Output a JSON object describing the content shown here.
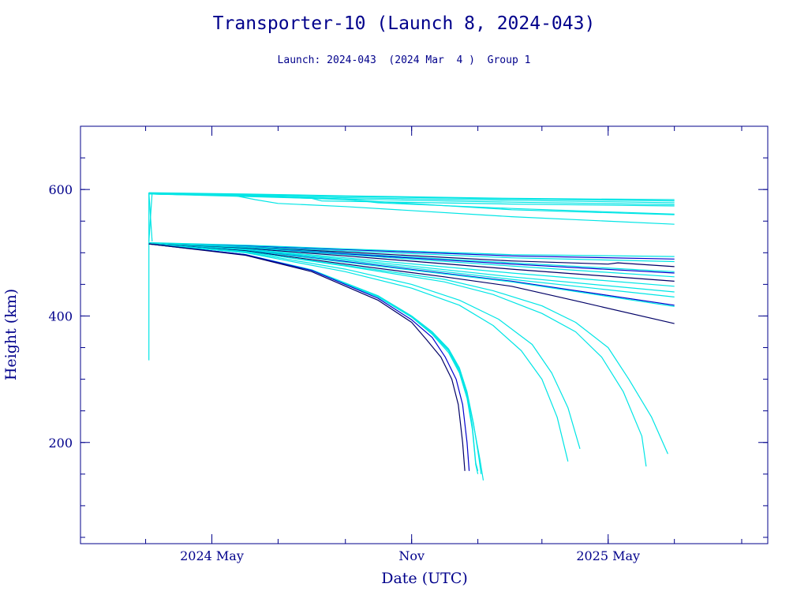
{
  "chart_data": {
    "type": "line",
    "title": "Transporter-10 (Launch 8, 2024-043)",
    "subtitle": "Launch: 2024-043  (2024 Mar  4 )  Group 1",
    "xlabel": "Date (UTC)",
    "ylabel": "Height (km)",
    "xlim": [
      "2024-01-01",
      "2025-09-25"
    ],
    "ylim": [
      40,
      700
    ],
    "x_ticks": [
      {
        "date": "2024-05-01",
        "label": "2024 May"
      },
      {
        "date": "2024-11-01",
        "label": "Nov"
      },
      {
        "date": "2025-05-01",
        "label": "2025 May"
      }
    ],
    "y_ticks": [
      {
        "value": 200,
        "label": "200"
      },
      {
        "value": 400,
        "label": "400"
      },
      {
        "value": 600,
        "label": "600"
      }
    ],
    "colors": {
      "frame": "#00008b",
      "cyan": "#00e5e5",
      "blue": "#0000cd",
      "navy": "#000066"
    },
    "series": [
      {
        "color": "#00e5e5",
        "points": [
          [
            "2024-03-04",
            330
          ],
          [
            "2024-03-04",
            595
          ]
        ]
      },
      {
        "color": "#00e5e5",
        "points": [
          [
            "2024-03-04",
            595
          ],
          [
            "2024-03-07",
            518
          ]
        ]
      },
      {
        "color": "#00e5e5",
        "points": [
          [
            "2024-03-04",
            518
          ],
          [
            "2024-03-07",
            595
          ]
        ]
      },
      {
        "color": "#00e5e5",
        "points": [
          [
            "2024-03-04",
            595
          ],
          [
            "2024-06-01",
            593
          ],
          [
            "2024-09-01",
            590
          ],
          [
            "2025-02-01",
            586
          ],
          [
            "2025-07-01",
            584
          ]
        ]
      },
      {
        "color": "#00e5e5",
        "points": [
          [
            "2024-03-04",
            594
          ],
          [
            "2024-06-01",
            592
          ],
          [
            "2024-09-01",
            589
          ],
          [
            "2025-02-01",
            585
          ],
          [
            "2025-07-01",
            582
          ]
        ]
      },
      {
        "color": "#00e5e5",
        "points": [
          [
            "2024-03-04",
            594
          ],
          [
            "2024-06-01",
            591
          ],
          [
            "2024-09-01",
            587
          ],
          [
            "2025-02-01",
            583
          ],
          [
            "2025-07-01",
            579
          ]
        ]
      },
      {
        "color": "#00e5e5",
        "points": [
          [
            "2024-03-04",
            593
          ],
          [
            "2024-06-01",
            590
          ],
          [
            "2024-09-01",
            585
          ],
          [
            "2025-02-01",
            580
          ],
          [
            "2025-07-01",
            576
          ]
        ]
      },
      {
        "color": "#00e5e5",
        "points": [
          [
            "2024-03-04",
            593
          ],
          [
            "2024-06-01",
            589
          ],
          [
            "2024-08-01",
            586
          ],
          [
            "2024-08-10",
            582
          ],
          [
            "2025-02-01",
            577
          ],
          [
            "2025-07-01",
            574
          ]
        ]
      },
      {
        "color": "#00e5e5",
        "points": [
          [
            "2024-03-04",
            593
          ],
          [
            "2024-06-01",
            590
          ],
          [
            "2024-09-01",
            585
          ],
          [
            "2024-10-01",
            579
          ],
          [
            "2025-02-01",
            570
          ],
          [
            "2025-07-01",
            561
          ]
        ]
      },
      {
        "color": "#00e5e5",
        "points": [
          [
            "2024-03-04",
            593
          ],
          [
            "2024-06-01",
            590
          ],
          [
            "2024-09-01",
            584
          ],
          [
            "2025-02-01",
            568
          ],
          [
            "2025-07-01",
            560
          ]
        ]
      },
      {
        "color": "#00e5e5",
        "points": [
          [
            "2024-03-04",
            593
          ],
          [
            "2024-05-20",
            591
          ],
          [
            "2024-06-10",
            584
          ],
          [
            "2024-07-01",
            578
          ],
          [
            "2024-09-01",
            573
          ],
          [
            "2025-02-01",
            557
          ],
          [
            "2025-07-01",
            545
          ]
        ]
      },
      {
        "color": "#0000cd",
        "points": [
          [
            "2024-03-04",
            515
          ],
          [
            "2024-06-01",
            511
          ],
          [
            "2024-09-01",
            505
          ],
          [
            "2025-02-01",
            495
          ],
          [
            "2025-07-01",
            490
          ]
        ]
      },
      {
        "color": "#00e5e5",
        "points": [
          [
            "2024-03-04",
            516
          ],
          [
            "2024-06-01",
            512
          ],
          [
            "2024-09-01",
            506
          ],
          [
            "2025-02-01",
            497
          ],
          [
            "2025-07-01",
            494
          ]
        ]
      },
      {
        "color": "#00e5e5",
        "points": [
          [
            "2024-03-04",
            515
          ],
          [
            "2024-06-01",
            510
          ],
          [
            "2024-09-01",
            503
          ],
          [
            "2025-02-01",
            492
          ],
          [
            "2025-07-01",
            486
          ]
        ]
      },
      {
        "color": "#000066",
        "points": [
          [
            "2024-03-04",
            514
          ],
          [
            "2024-06-01",
            509
          ],
          [
            "2024-09-01",
            501
          ],
          [
            "2025-02-01",
            487
          ],
          [
            "2025-05-01",
            482
          ],
          [
            "2025-05-10",
            484
          ],
          [
            "2025-07-01",
            478
          ]
        ]
      },
      {
        "color": "#00e5e5",
        "points": [
          [
            "2024-03-04",
            515
          ],
          [
            "2024-06-01",
            509
          ],
          [
            "2024-09-01",
            499
          ],
          [
            "2025-02-01",
            484
          ],
          [
            "2025-07-01",
            470
          ]
        ]
      },
      {
        "color": "#0000cd",
        "points": [
          [
            "2024-03-04",
            514
          ],
          [
            "2024-06-01",
            508
          ],
          [
            "2024-09-01",
            498
          ],
          [
            "2025-02-01",
            482
          ],
          [
            "2025-07-01",
            468
          ]
        ]
      },
      {
        "color": "#00e5e5",
        "points": [
          [
            "2024-03-04",
            515
          ],
          [
            "2024-06-01",
            508
          ],
          [
            "2024-09-01",
            497
          ],
          [
            "2025-02-01",
            479
          ],
          [
            "2025-07-01",
            462
          ]
        ]
      },
      {
        "color": "#000066",
        "points": [
          [
            "2024-03-04",
            514
          ],
          [
            "2024-06-01",
            507
          ],
          [
            "2024-09-01",
            495
          ],
          [
            "2025-02-01",
            474
          ],
          [
            "2025-07-01",
            455
          ]
        ]
      },
      {
        "color": "#00e5e5",
        "points": [
          [
            "2024-03-04",
            514
          ],
          [
            "2024-06-01",
            506
          ],
          [
            "2024-09-01",
            492
          ],
          [
            "2025-02-01",
            468
          ],
          [
            "2025-07-01",
            447
          ]
        ]
      },
      {
        "color": "#00e5e5",
        "points": [
          [
            "2024-03-04",
            514
          ],
          [
            "2024-06-01",
            505
          ],
          [
            "2024-09-01",
            490
          ],
          [
            "2025-02-01",
            462
          ],
          [
            "2025-07-01",
            438
          ]
        ]
      },
      {
        "color": "#00e5e5",
        "points": [
          [
            "2024-03-04",
            514
          ],
          [
            "2024-06-01",
            505
          ],
          [
            "2024-09-01",
            488
          ],
          [
            "2025-02-01",
            458
          ],
          [
            "2025-07-01",
            430
          ]
        ]
      },
      {
        "color": "#0000cd",
        "points": [
          [
            "2024-03-04",
            514
          ],
          [
            "2024-06-01",
            504
          ],
          [
            "2024-09-01",
            486
          ],
          [
            "2025-02-01",
            455
          ],
          [
            "2025-07-01",
            417
          ]
        ]
      },
      {
        "color": "#00e5e5",
        "points": [
          [
            "2024-03-04",
            514
          ],
          [
            "2024-06-01",
            504
          ],
          [
            "2024-09-01",
            485
          ],
          [
            "2025-02-01",
            454
          ],
          [
            "2025-07-01",
            415
          ]
        ]
      },
      {
        "color": "#000066",
        "points": [
          [
            "2024-03-04",
            514
          ],
          [
            "2024-06-01",
            503
          ],
          [
            "2024-09-01",
            482
          ],
          [
            "2024-12-01",
            462
          ],
          [
            "2025-02-01",
            447
          ],
          [
            "2025-04-01",
            424
          ],
          [
            "2025-07-01",
            388
          ]
        ]
      },
      {
        "color": "#00e5e5",
        "points": [
          [
            "2024-03-04",
            514
          ],
          [
            "2024-06-01",
            502
          ],
          [
            "2024-09-01",
            480
          ],
          [
            "2024-12-01",
            458
          ],
          [
            "2025-01-15",
            440
          ],
          [
            "2025-03-01",
            416
          ],
          [
            "2025-04-01",
            390
          ],
          [
            "2025-05-01",
            350
          ],
          [
            "2025-05-20",
            300
          ],
          [
            "2025-06-10",
            240
          ],
          [
            "2025-06-25",
            182
          ]
        ]
      },
      {
        "color": "#00e5e5",
        "points": [
          [
            "2024-03-04",
            514
          ],
          [
            "2024-06-01",
            502
          ],
          [
            "2024-09-01",
            479
          ],
          [
            "2024-12-01",
            454
          ],
          [
            "2025-01-15",
            434
          ],
          [
            "2025-03-01",
            404
          ],
          [
            "2025-04-01",
            375
          ],
          [
            "2025-04-25",
            335
          ],
          [
            "2025-05-15",
            280
          ],
          [
            "2025-06-01",
            210
          ],
          [
            "2025-06-05",
            162
          ]
        ]
      },
      {
        "color": "#00e5e5",
        "points": [
          [
            "2024-03-04",
            514
          ],
          [
            "2024-06-01",
            501
          ],
          [
            "2024-09-01",
            474
          ],
          [
            "2024-11-01",
            450
          ],
          [
            "2024-12-15",
            425
          ],
          [
            "2025-01-20",
            395
          ],
          [
            "2025-02-20",
            355
          ],
          [
            "2025-03-10",
            310
          ],
          [
            "2025-03-25",
            255
          ],
          [
            "2025-04-05",
            190
          ]
        ]
      },
      {
        "color": "#00e5e5",
        "points": [
          [
            "2024-03-04",
            514
          ],
          [
            "2024-06-01",
            500
          ],
          [
            "2024-09-01",
            470
          ],
          [
            "2024-11-01",
            444
          ],
          [
            "2024-12-15",
            417
          ],
          [
            "2025-01-15",
            385
          ],
          [
            "2025-02-10",
            345
          ],
          [
            "2025-03-01",
            300
          ],
          [
            "2025-03-15",
            240
          ],
          [
            "2025-03-25",
            170
          ]
        ]
      },
      {
        "color": "#00e5e5",
        "points": [
          [
            "2024-03-04",
            514
          ],
          [
            "2024-06-01",
            497
          ],
          [
            "2024-08-01",
            473
          ],
          [
            "2024-10-01",
            432
          ],
          [
            "2024-11-01",
            400
          ],
          [
            "2024-11-20",
            375
          ],
          [
            "2024-12-05",
            348
          ],
          [
            "2024-12-15",
            318
          ],
          [
            "2024-12-22",
            280
          ],
          [
            "2024-12-28",
            230
          ],
          [
            "2025-01-02",
            175
          ],
          [
            "2025-01-04",
            150
          ]
        ]
      },
      {
        "color": "#00e5e5",
        "points": [
          [
            "2024-03-04",
            514
          ],
          [
            "2024-06-01",
            497
          ],
          [
            "2024-08-01",
            472
          ],
          [
            "2024-10-01",
            430
          ],
          [
            "2024-11-01",
            398
          ],
          [
            "2024-11-20",
            371
          ],
          [
            "2024-12-05",
            342
          ],
          [
            "2024-12-15",
            310
          ],
          [
            "2024-12-22",
            270
          ],
          [
            "2024-12-27",
            220
          ],
          [
            "2024-12-30",
            165
          ],
          [
            "2025-01-01",
            150
          ]
        ]
      },
      {
        "color": "#00e5e5",
        "points": [
          [
            "2024-03-04",
            514
          ],
          [
            "2024-06-01",
            497
          ],
          [
            "2024-08-01",
            472
          ],
          [
            "2024-10-01",
            431
          ],
          [
            "2024-11-01",
            399
          ],
          [
            "2024-11-20",
            372
          ],
          [
            "2024-12-05",
            345
          ],
          [
            "2024-12-15",
            313
          ],
          [
            "2024-12-22",
            275
          ],
          [
            "2024-12-27",
            225
          ],
          [
            "2024-12-30",
            168
          ],
          [
            "2025-01-01",
            155
          ]
        ]
      },
      {
        "color": "#00e5e5",
        "points": [
          [
            "2024-03-04",
            514
          ],
          [
            "2024-06-01",
            497
          ],
          [
            "2024-08-01",
            472
          ],
          [
            "2024-10-01",
            432
          ],
          [
            "2024-11-01",
            400
          ],
          [
            "2024-11-20",
            374
          ],
          [
            "2024-12-05",
            347
          ],
          [
            "2024-12-15",
            316
          ],
          [
            "2024-12-22",
            278
          ],
          [
            "2024-12-28",
            228
          ],
          [
            "2025-01-03",
            172
          ],
          [
            "2025-01-06",
            140
          ]
        ]
      },
      {
        "color": "#0000cd",
        "points": [
          [
            "2024-03-04",
            514
          ],
          [
            "2024-06-01",
            497
          ],
          [
            "2024-08-01",
            472
          ],
          [
            "2024-10-01",
            428
          ],
          [
            "2024-11-01",
            394
          ],
          [
            "2024-11-20",
            366
          ],
          [
            "2024-12-02",
            335
          ],
          [
            "2024-12-12",
            300
          ],
          [
            "2024-12-18",
            260
          ],
          [
            "2024-12-22",
            200
          ],
          [
            "2024-12-24",
            155
          ]
        ]
      },
      {
        "color": "#000066",
        "points": [
          [
            "2024-03-04",
            514
          ],
          [
            "2024-06-01",
            496
          ],
          [
            "2024-08-01",
            470
          ],
          [
            "2024-10-01",
            425
          ],
          [
            "2024-11-01",
            390
          ],
          [
            "2024-11-15",
            362
          ],
          [
            "2024-11-28",
            335
          ],
          [
            "2024-12-08",
            300
          ],
          [
            "2024-12-14",
            260
          ],
          [
            "2024-12-18",
            200
          ],
          [
            "2024-12-20",
            155
          ]
        ]
      }
    ]
  }
}
